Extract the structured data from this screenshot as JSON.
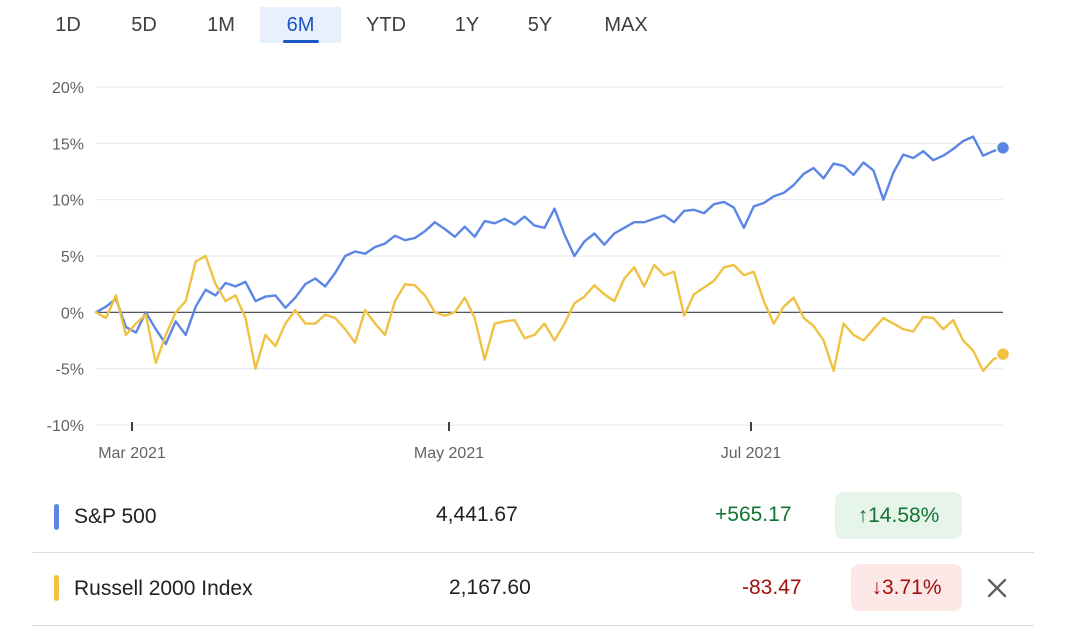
{
  "range_tabs": [
    {
      "label": "1D",
      "active": false
    },
    {
      "label": "5D",
      "active": false
    },
    {
      "label": "1M",
      "active": false
    },
    {
      "label": "6M",
      "active": true
    },
    {
      "label": "YTD",
      "active": false
    },
    {
      "label": "1Y",
      "active": false
    },
    {
      "label": "5Y",
      "active": false
    },
    {
      "label": "MAX",
      "active": false
    }
  ],
  "chart_data": {
    "type": "line",
    "title": "",
    "xlabel": "",
    "ylabel": "",
    "ylim": [
      -10,
      20
    ],
    "y_ticks": [
      20,
      15,
      10,
      5,
      0,
      -5,
      -10
    ],
    "y_tick_labels": [
      "20%",
      "15%",
      "10%",
      "5%",
      "0%",
      "-5%",
      "-10%"
    ],
    "x_tick_labels": [
      "Mar 2021",
      "May 2021",
      "Jul 2021"
    ],
    "grid": true,
    "legend": "below",
    "series": [
      {
        "name": "S&P 500",
        "color": "#5b86e5",
        "values": [
          0,
          0.5,
          1.2,
          -1.3,
          -1.8,
          0,
          -1.5,
          -2.8,
          -0.8,
          -2,
          0.5,
          2,
          1.5,
          2.6,
          2.3,
          2.7,
          1,
          1.4,
          1.5,
          0.4,
          1.3,
          2.5,
          3,
          2.3,
          3.5,
          5,
          5.4,
          5.2,
          5.8,
          6.1,
          6.8,
          6.4,
          6.6,
          7.2,
          8,
          7.4,
          6.7,
          7.6,
          6.7,
          8.1,
          7.9,
          8.3,
          7.8,
          8.5,
          7.7,
          7.5,
          9.2,
          6.9,
          5,
          6.3,
          7,
          6,
          7,
          7.5,
          8,
          8,
          8.3,
          8.6,
          8,
          9,
          9.1,
          8.8,
          9.6,
          9.8,
          9.3,
          7.5,
          9.4,
          9.7,
          10.3,
          10.6,
          11.3,
          12.3,
          12.8,
          11.9,
          13.2,
          13,
          12.2,
          13.3,
          12.6,
          10,
          12.4,
          14,
          13.7,
          14.3,
          13.5,
          13.9,
          14.5,
          15.2,
          15.6,
          13.9,
          14.3,
          14.6
        ],
        "end_value": 14.58
      },
      {
        "name": "Russell 2000 Index",
        "color": "#f0c243",
        "values": [
          0,
          -0.5,
          1.5,
          -2,
          -1,
          -0.2,
          -4.5,
          -2,
          0,
          1,
          4.5,
          5,
          2.5,
          1,
          1.5,
          -0.5,
          -5,
          -2,
          -3,
          -1,
          0.2,
          -1,
          -1,
          -0.2,
          -0.5,
          -1.5,
          -2.7,
          0.2,
          -1,
          -2,
          1,
          2.5,
          2.4,
          1.5,
          0,
          -0.3,
          0,
          1.3,
          -0.5,
          -4.2,
          -1,
          -0.8,
          -0.7,
          -2.3,
          -2,
          -1,
          -2.5,
          -1,
          0.8,
          1.4,
          2.4,
          1.6,
          1,
          3,
          4,
          2.3,
          4.2,
          3.3,
          3.6,
          -0.3,
          1.6,
          2.2,
          2.8,
          4,
          4.2,
          3.3,
          3.6,
          1,
          -1,
          0.5,
          1.3,
          -0.5,
          -1.2,
          -2.5,
          -5.2,
          -1,
          -2,
          -2.5,
          -1.5,
          -0.5,
          -1,
          -1.5,
          -1.7,
          -0.4,
          -0.5,
          -1.5,
          -0.7,
          -2.5,
          -3.4,
          -5.2,
          -4.2,
          -3.71
        ],
        "end_value": -3.71
      }
    ]
  },
  "legend_rows": [
    {
      "name": "S&P 500",
      "price": "4,441.67",
      "change": "+565.17",
      "pct": "14.58%",
      "arrow": "↑",
      "color": "#5b86e5"
    },
    {
      "name": "Russell 2000 Index",
      "price": "2,167.60",
      "change": "-83.47",
      "pct": "3.71%",
      "arrow": "↓",
      "color": "#f0c243"
    }
  ],
  "close_icon": "close-icon"
}
